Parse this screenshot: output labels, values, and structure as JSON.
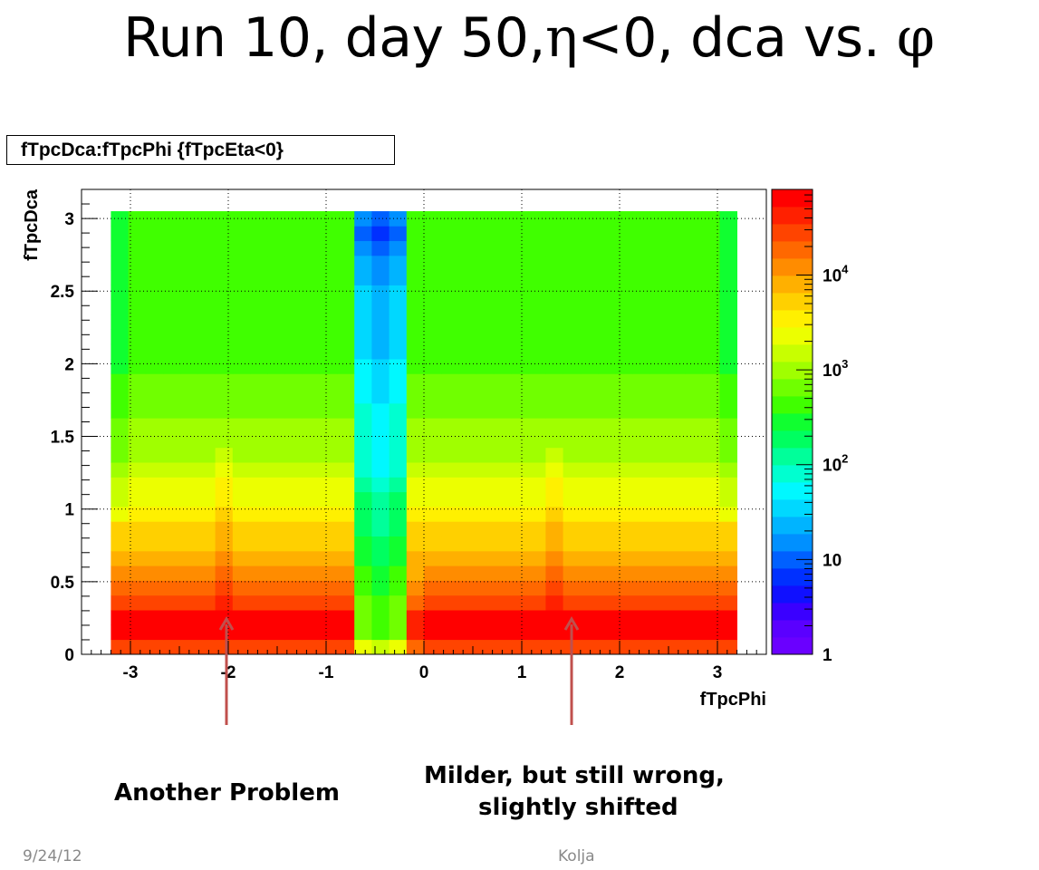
{
  "slide": {
    "title_main": "Run 10, day 50,",
    "title_eta": "η",
    "title_cond": "<0, dca vs. ",
    "title_phi": "φ"
  },
  "annotations": {
    "left": "Another Problem",
    "right_line1": "Milder, but still wrong,",
    "right_line2": "slightly shifted"
  },
  "footer": {
    "date": "9/24/12",
    "author": "Kolja"
  },
  "chart_data": {
    "type": "heatmap",
    "title": "fTpcDca:fTpcPhi {fTpcEta<0}",
    "xlabel": "fTpcPhi",
    "ylabel": "fTpcDca",
    "xlim": [
      -3.5,
      3.5
    ],
    "ylim": [
      0,
      3.2
    ],
    "grid": true,
    "x_bin_range": [
      -3.2,
      3.2
    ],
    "y_bin_range": [
      0,
      3.05
    ],
    "x_bins": 36,
    "y_bins": 30,
    "x_ticks": [
      "-3",
      "-2",
      "-1",
      "0",
      "1",
      "2",
      "3"
    ],
    "x_tick_values": [
      -3,
      -2,
      -1,
      0,
      1,
      2,
      3
    ],
    "y_ticks": [
      "0",
      "0.5",
      "1",
      "1.5",
      "2",
      "2.5",
      "3"
    ],
    "y_tick_values": [
      0,
      0.5,
      1,
      1.5,
      2,
      2.5,
      3
    ],
    "z_scale": "log",
    "z_range": [
      1,
      80000
    ],
    "z_ticks": [
      "1",
      "10",
      "10²",
      "10³",
      "10⁴"
    ],
    "z_tick_values": [
      1,
      10,
      100,
      1000,
      10000
    ],
    "palette": [
      "#6a00ff",
      "#5a00ff",
      "#3a00ff",
      "#1010ff",
      "#0030ff",
      "#0060ff",
      "#0090ff",
      "#00b4ff",
      "#00d8ff",
      "#00f8ff",
      "#00ffd0",
      "#00ff9a",
      "#00ff60",
      "#10ff30",
      "#40ff00",
      "#70ff00",
      "#a0ff00",
      "#c8ff00",
      "#ecff00",
      "#fff000",
      "#ffd000",
      "#ffb000",
      "#ff8c00",
      "#ff6800",
      "#ff4400",
      "#ff2000",
      "#ff0000"
    ],
    "row_levels": [
      24,
      26,
      26,
      24,
      23,
      22,
      21,
      20,
      20,
      19,
      18,
      18,
      17,
      16,
      16,
      16,
      15,
      15,
      15,
      14,
      14,
      14,
      14,
      14,
      14,
      14,
      14,
      14,
      14,
      14
    ],
    "hot_columns": [
      6,
      25
    ],
    "hot_boost": 1,
    "dead_columns": [
      14,
      15,
      16
    ],
    "dead_column_levels": [
      18,
      15,
      15,
      15,
      14,
      14,
      13,
      13,
      12,
      12,
      12,
      11,
      10,
      10,
      10,
      10,
      10,
      9,
      9,
      9,
      8,
      8,
      8,
      8,
      8,
      7,
      7,
      6,
      5,
      6
    ],
    "gap_column": 17,
    "colorbar_label_format": "exponent"
  }
}
